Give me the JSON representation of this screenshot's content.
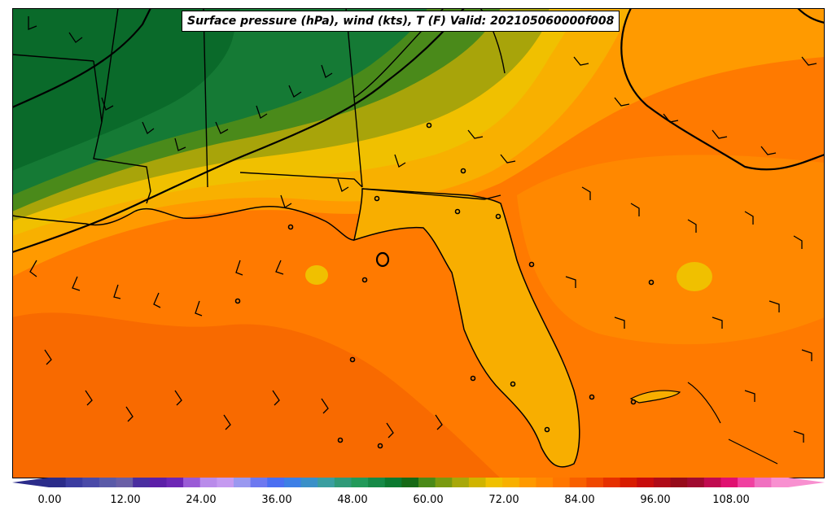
{
  "title": "Surface pressure (hPa), wind (kts), T (F) Valid: 202105060000f008",
  "colorbar": {
    "tick_labels": [
      "0.00",
      "12.00",
      "24.00",
      "36.00",
      "48.00",
      "60.00",
      "72.00",
      "84.00",
      "96.00",
      "108.00"
    ],
    "colors": [
      "#2b2c8a",
      "#3b3ca0",
      "#4a4aa8",
      "#5a5aa8",
      "#6a5fa6",
      "#4a2ea0",
      "#5c1fa8",
      "#6d27b5",
      "#9a5bd6",
      "#b98bea",
      "#c59af0",
      "#9a98f0",
      "#6d78f0",
      "#4a6ef2",
      "#3d7fe6",
      "#3a90c8",
      "#3a9ea0",
      "#2f9a78",
      "#229a5a",
      "#168a47",
      "#0c7a30",
      "#166a16",
      "#4a8a18",
      "#7a9a10",
      "#a8a80a",
      "#d0b400",
      "#f0c000",
      "#f8b000",
      "#ff9a00",
      "#ff8800",
      "#ff7600",
      "#f86000",
      "#f04800",
      "#e63000",
      "#d81c00",
      "#c80c0c",
      "#b00a18",
      "#960a1a",
      "#a00a30",
      "#c00a50",
      "#e01070",
      "#f040a0",
      "#f070c0",
      "#f890d0"
    ]
  },
  "map": {
    "land_colors": {
      "dark_green": "#0a6a2a",
      "green": "#157a35",
      "olive": "#4a8a1a",
      "yellow_green": "#a8a40a",
      "yellow": "#f0c000",
      "gold": "#f8ae00",
      "orange": "#ff8c00",
      "dark_orange": "#f86a00"
    },
    "isobar_color": "#000000",
    "pressure_centers": [
      "low-small",
      "low-small",
      "low-small"
    ]
  }
}
